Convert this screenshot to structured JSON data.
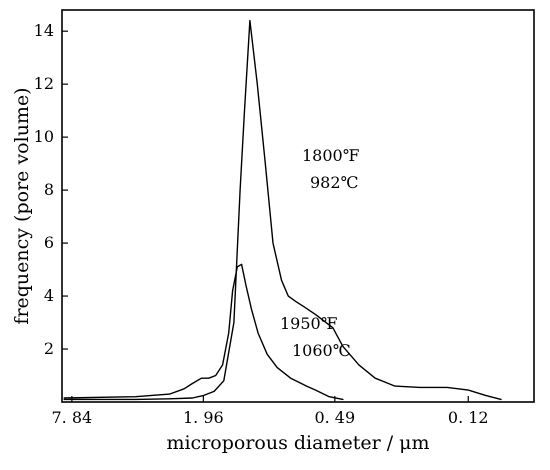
{
  "chart_data": {
    "type": "line",
    "title": "",
    "xlabel": "microporous diameter / μm",
    "ylabel": "frequency (pore volume)",
    "x_scale": "log-reversed",
    "xlim": [
      8.7,
      0.06
    ],
    "ylim": [
      0,
      14.8
    ],
    "x_ticks": [
      {
        "value": 7.84,
        "label": "7. 84"
      },
      {
        "value": 1.96,
        "label": "1. 96"
      },
      {
        "value": 0.49,
        "label": "0. 49"
      },
      {
        "value": 0.12,
        "label": "0. 12"
      }
    ],
    "y_ticks": [
      2,
      4,
      6,
      8,
      10,
      12,
      14
    ],
    "grid": false,
    "legend": "none",
    "series": [
      {
        "annotation": [
          "1800℉",
          "982℃"
        ],
        "x": [
          8.5,
          4.0,
          2.8,
          2.2,
          1.95,
          1.75,
          1.58,
          1.42,
          1.33,
          1.27,
          1.2,
          1.11,
          1.02,
          0.94,
          0.86,
          0.8,
          0.74,
          0.68,
          0.6,
          0.5,
          0.45,
          0.38,
          0.32,
          0.26,
          0.2,
          0.15,
          0.12,
          0.1,
          0.085
        ],
        "y": [
          0.1,
          0.1,
          0.12,
          0.15,
          0.25,
          0.4,
          0.8,
          3.0,
          8.0,
          11.0,
          14.4,
          12.0,
          9.0,
          6.0,
          4.6,
          4.0,
          3.8,
          3.6,
          3.3,
          2.8,
          2.1,
          1.4,
          0.9,
          0.6,
          0.55,
          0.55,
          0.45,
          0.25,
          0.1
        ]
      },
      {
        "annotation": [
          "1950℉",
          "1060℃"
        ],
        "x": [
          8.5,
          4.0,
          2.8,
          2.4,
          2.2,
          2.0,
          1.85,
          1.72,
          1.6,
          1.5,
          1.44,
          1.37,
          1.31,
          1.25,
          1.18,
          1.1,
          1.0,
          0.9,
          0.78,
          0.66,
          0.6,
          0.52,
          0.45
        ],
        "y": [
          0.15,
          0.2,
          0.3,
          0.5,
          0.7,
          0.9,
          0.9,
          1.0,
          1.4,
          2.6,
          4.2,
          5.1,
          5.2,
          4.4,
          3.5,
          2.6,
          1.8,
          1.3,
          0.9,
          0.6,
          0.45,
          0.2,
          0.1
        ]
      }
    ]
  }
}
